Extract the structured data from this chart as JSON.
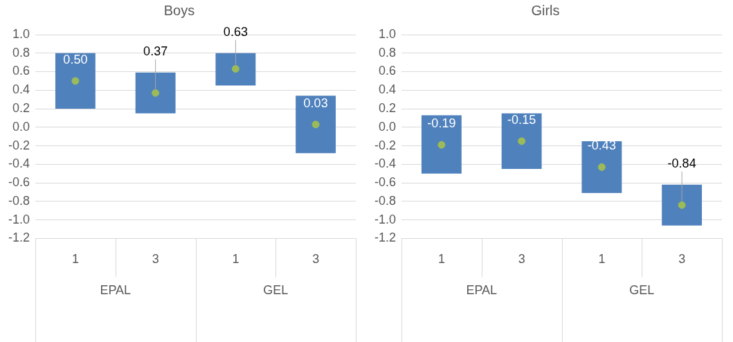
{
  "chart_data": [
    {
      "type": "bar",
      "title": "Boys",
      "categories": [
        "1",
        "3",
        "1",
        "3"
      ],
      "annotations": [
        "EPAL",
        "GEL"
      ],
      "ylim": [
        -1.2,
        1.0
      ],
      "yticks": [
        {
          "value": -1.2,
          "label": "-1.2"
        },
        {
          "value": -1.0,
          "label": "-1.0"
        },
        {
          "value": -0.8,
          "label": "-0.8"
        },
        {
          "value": -0.6,
          "label": "-0.6"
        },
        {
          "value": -0.4,
          "label": "-0.4"
        },
        {
          "value": -0.2,
          "label": "-0.2"
        },
        {
          "value": 0,
          "label": "0.0"
        },
        {
          "value": 0.2,
          "label": "0.2"
        },
        {
          "value": 0.4,
          "label": "0.4"
        },
        {
          "value": 0.6,
          "label": "0.6"
        },
        {
          "value": 0.8,
          "label": "0.8"
        },
        {
          "value": 1.0,
          "label": "1.0"
        }
      ],
      "grid": "y",
      "legend": false,
      "marker": "circle",
      "series": [
        {
          "color": "#4f81bd",
          "base": [
            0.2,
            0.15,
            0.45,
            -0.28
          ],
          "values": [
            0.6,
            0.44,
            0.35,
            0.62
          ]
        },
        {
          "type": "scatter",
          "color": "#9bbb59",
          "values": [
            0.5,
            0.37,
            0.63,
            0.03
          ],
          "value_labels": [
            "0.50",
            "0.37",
            "0.63",
            "0.03"
          ]
        }
      ]
    },
    {
      "type": "bar",
      "title": "Girls",
      "categories": [
        "1",
        "3",
        "1",
        "3"
      ],
      "annotations": [
        "EPAL",
        "GEL"
      ],
      "ylim": [
        -1.2,
        1.0
      ],
      "yticks": [
        {
          "value": -1.2,
          "label": "-1.2"
        },
        {
          "value": -1.0,
          "label": "-1.0"
        },
        {
          "value": -0.8,
          "label": "-0.8"
        },
        {
          "value": -0.6,
          "label": "-0.6"
        },
        {
          "value": -0.4,
          "label": "-0.4"
        },
        {
          "value": -0.2,
          "label": "-0.2"
        },
        {
          "value": 0,
          "label": "0.0"
        },
        {
          "value": 0.2,
          "label": "0.2"
        },
        {
          "value": 0.4,
          "label": "0.4"
        },
        {
          "value": 0.6,
          "label": "0.6"
        },
        {
          "value": 0.8,
          "label": "0.8"
        },
        {
          "value": 1.0,
          "label": "1.0"
        }
      ],
      "grid": "y",
      "legend": false,
      "marker": "circle",
      "series": [
        {
          "color": "#4f81bd",
          "base": [
            -0.5,
            -0.45,
            -0.71,
            -1.06
          ],
          "values": [
            0.63,
            0.6,
            0.56,
            0.44
          ]
        },
        {
          "type": "scatter",
          "color": "#9bbb59",
          "values": [
            -0.19,
            -0.15,
            -0.43,
            -0.84
          ],
          "value_labels": [
            "-0.19",
            "-0.15",
            "-0.43",
            "-0.84"
          ]
        }
      ]
    }
  ]
}
